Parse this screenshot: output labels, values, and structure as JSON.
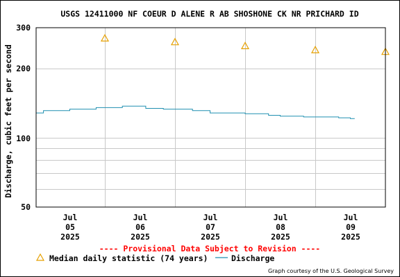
{
  "chart_data": {
    "type": "line",
    "title": "USGS 12411000 NF COEUR D ALENE R AB SHOSHONE CK NR PRICHARD ID",
    "ylabel": "Discharge, cubic feet per second",
    "xlabel": "",
    "y_scale": "log",
    "ylim": [
      50,
      300
    ],
    "y_ticks": [
      "300",
      "200",
      "100",
      "50"
    ],
    "y_tick_values": [
      300,
      200,
      100,
      50
    ],
    "x_ticks": [
      {
        "month": "Jul",
        "day": "05",
        "year": "2025"
      },
      {
        "month": "Jul",
        "day": "06",
        "year": "2025"
      },
      {
        "month": "Jul",
        "day": "07",
        "year": "2025"
      },
      {
        "month": "Jul",
        "day": "08",
        "year": "2025"
      },
      {
        "month": "Jul",
        "day": "09",
        "year": "2025"
      }
    ],
    "xlim_days": [
      -0.48,
      4.5
    ],
    "grid": true,
    "series": [
      {
        "name": "Median daily statistic (74 years)",
        "marker": "triangle",
        "color": "#e6a000",
        "points": [
          {
            "date": "2025-07-05",
            "value": 270
          },
          {
            "date": "2025-07-06",
            "value": 260
          },
          {
            "date": "2025-07-07",
            "value": 250
          },
          {
            "date": "2025-07-08",
            "value": 240
          },
          {
            "date": "2025-07-09",
            "value": 236
          }
        ]
      },
      {
        "name": "Discharge",
        "marker": "line",
        "color": "#1f8fb0",
        "points": [
          {
            "date": "2025-07-04 12:30",
            "value": 128
          },
          {
            "date": "2025-07-04 15:00",
            "value": 131
          },
          {
            "date": "2025-07-04 21:00",
            "value": 131
          },
          {
            "date": "2025-07-05 00:00",
            "value": 133
          },
          {
            "date": "2025-07-05 07:00",
            "value": 133
          },
          {
            "date": "2025-07-05 09:00",
            "value": 135
          },
          {
            "date": "2025-07-05 15:00",
            "value": 135
          },
          {
            "date": "2025-07-05 18:00",
            "value": 137
          },
          {
            "date": "2025-07-06 00:00",
            "value": 137
          },
          {
            "date": "2025-07-06 02:00",
            "value": 134
          },
          {
            "date": "2025-07-06 06:00",
            "value": 134
          },
          {
            "date": "2025-07-06 08:00",
            "value": 133
          },
          {
            "date": "2025-07-06 14:00",
            "value": 133
          },
          {
            "date": "2025-07-06 18:00",
            "value": 131
          },
          {
            "date": "2025-07-07 00:00",
            "value": 128
          },
          {
            "date": "2025-07-07 08:00",
            "value": 128
          },
          {
            "date": "2025-07-07 12:00",
            "value": 127
          },
          {
            "date": "2025-07-07 20:00",
            "value": 125
          },
          {
            "date": "2025-07-08 00:00",
            "value": 124
          },
          {
            "date": "2025-07-08 08:00",
            "value": 123
          },
          {
            "date": "2025-07-08 20:00",
            "value": 122
          },
          {
            "date": "2025-07-09 00:00",
            "value": 121
          },
          {
            "date": "2025-07-09 01:30",
            "value": 121
          }
        ]
      }
    ]
  },
  "legend": {
    "median_label": "Median daily statistic (74 years)",
    "discharge_label": "Discharge"
  },
  "provisional_note": "---- Provisional Data Subject to Revision ----",
  "credit": "Graph courtesy of the U.S. Geological Survey",
  "colors": {
    "grid": "#c8c8c8",
    "axis": "#000000",
    "provisional": "#ff0000",
    "median": "#e6a000",
    "discharge": "#1f8fb0"
  }
}
